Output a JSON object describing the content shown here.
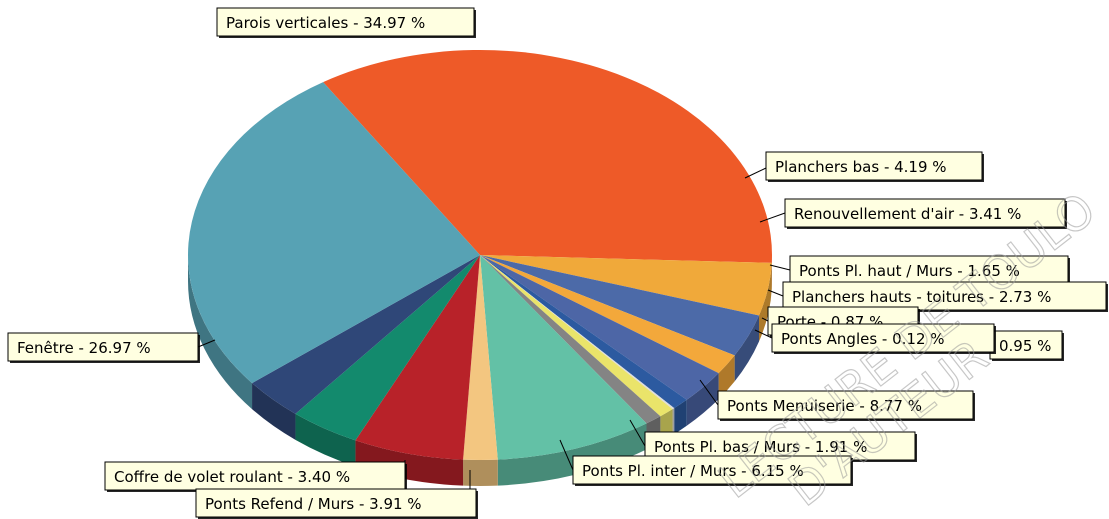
{
  "watermark": {
    "lines": [
      "LECTURE DE TOULO",
      "D'AUTEUR"
    ]
  },
  "chart_data": {
    "type": "pie",
    "title": "",
    "slices": [
      {
        "label": "Parois verticales",
        "value": 34.97,
        "display": "Parois verticales - 34.97 %",
        "color": "#ee5a28"
      },
      {
        "label": "Planchers bas",
        "value": 4.19,
        "display": "Planchers bas - 4.19 %",
        "color": "#f0a93a"
      },
      {
        "label": "Renouvellement d'air",
        "value": 3.41,
        "display": "Renouvellement d'air - 3.41 %",
        "color": "#4c6aa8"
      },
      {
        "label": "Ponts Pl. haut / Murs",
        "value": 1.65,
        "display": "Ponts Pl. haut / Murs - 1.65 %",
        "color": "#f3a83b"
      },
      {
        "label": "Planchers hauts - toitures",
        "value": 2.73,
        "display": "Planchers hauts - toitures - 2.73 %",
        "color": "#4d66a6"
      },
      {
        "label": "",
        "value": 0.95,
        "display": "0.95 %",
        "color": "#2c5aa0"
      },
      {
        "label": "Ponts Angles",
        "value": 0.12,
        "display": "Ponts Angles - 0.12 %",
        "color": "#dddddd"
      },
      {
        "label": "Porte",
        "value": 0.87,
        "display": "Porte - 0.87 %",
        "color": "#eae46a"
      },
      {
        "label": "",
        "value": 0.95,
        "display": "",
        "color": "#848484"
      },
      {
        "label": "Ponts Menuiserie",
        "value": 8.77,
        "display": "Ponts Menuiserie - 8.77 %",
        "color": "#63c1a6"
      },
      {
        "label": "Ponts Pl. bas / Murs",
        "value": 1.91,
        "display": "Ponts Pl. bas / Murs - 1.91 %",
        "color": "#f3c680"
      },
      {
        "label": "Ponts Pl. inter / Murs",
        "value": 6.15,
        "display": "Ponts Pl. inter / Murs - 6.15 %",
        "color": "#b82229"
      },
      {
        "label": "Ponts Refend / Murs",
        "value": 3.91,
        "display": "Ponts Refend / Murs - 3.91 %",
        "color": "#138a6d"
      },
      {
        "label": "Coffre de volet roulant",
        "value": 3.4,
        "display": "Coffre de volet roulant - 3.40 %",
        "color": "#2f4778"
      },
      {
        "label": "Fenêtre",
        "value": 26.97,
        "display": "Fenêtre  - 26.97 %",
        "color": "#57a2b4"
      }
    ]
  }
}
